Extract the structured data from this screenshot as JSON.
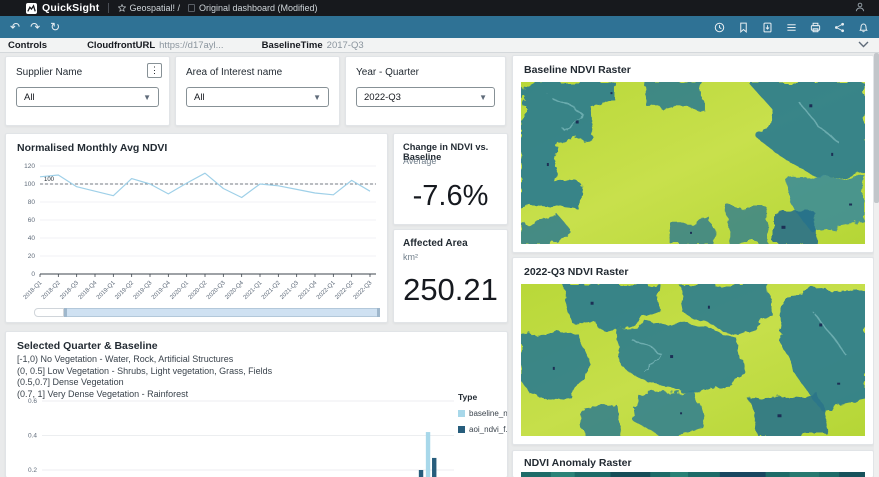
{
  "topbar": {
    "brand": "QuickSight",
    "breadcrumb": "Geospatial! /",
    "page_title": "Original dashboard (Modified)"
  },
  "toolbar": {
    "left_icons": [
      "undo",
      "redo",
      "refresh"
    ],
    "right_icons": [
      "schedule",
      "bookmark",
      "download",
      "rows",
      "print",
      "share",
      "alerts"
    ]
  },
  "controls_bar": {
    "title": "Controls",
    "params": [
      {
        "name": "CloudfrontURL",
        "value": "https://d17ayl..."
      },
      {
        "name": "BaselineTime",
        "value": "2017-Q3"
      }
    ]
  },
  "filters": [
    {
      "label": "Supplier Name",
      "value": "All"
    },
    {
      "label": "Area of Interest name",
      "value": "All"
    },
    {
      "label": "Year - Quarter",
      "value": "2022-Q3"
    }
  ],
  "kpis": [
    {
      "title": "Change in NDVI vs. Baseline",
      "subtitle": "Average",
      "value": "-7.6%"
    },
    {
      "title": "Affected Area",
      "subtitle": "km²",
      "value": "250.21"
    }
  ],
  "raster_panels": [
    {
      "title": "Baseline NDVI Raster"
    },
    {
      "title": "2022-Q3 NDVI Raster"
    },
    {
      "title": "NDVI Anomaly Raster"
    }
  ],
  "colors": {
    "topbar": "#17191d",
    "toolbar_blue": "#2f7295",
    "line": "#9fd0e8",
    "baseline_series": "#a8d8ea",
    "aoi_series": "#275d7c",
    "raster_green": "#bcd93c",
    "raster_teal": "#2e7d8d"
  },
  "chart_data": [
    {
      "type": "line",
      "title": "Normalised Monthly Avg NDVI",
      "categories": [
        "2018-Q1",
        "2018-Q2",
        "2018-Q3",
        "2018-Q4",
        "2019-Q1",
        "2019-Q2",
        "2019-Q3",
        "2019-Q4",
        "2020-Q1",
        "2020-Q2",
        "2020-Q3",
        "2020-Q4",
        "2021-Q1",
        "2021-Q2",
        "2021-Q3",
        "2021-Q4",
        "2022-Q1",
        "2022-Q2",
        "2022-Q3"
      ],
      "values": [
        108,
        110,
        97,
        92,
        87,
        106,
        100,
        89,
        101,
        112,
        95,
        85,
        100,
        98,
        94,
        90,
        88,
        104,
        92
      ],
      "ylim": [
        0,
        120
      ],
      "yticks": [
        0,
        20,
        40,
        60,
        80,
        100,
        120
      ],
      "reference_line": {
        "value": 100,
        "label": "100",
        "style": "dashed"
      },
      "grid": true,
      "line_color": "#9fd0e8"
    },
    {
      "type": "bar",
      "title": "Selected Quarter & Baseline",
      "notes": [
        "[-1,0) No Vegetation - Water, Rock, Artificial Structures",
        "(0, 0.5] Low Vegetation - Shrubs, Light vegetation, Grass, Fields",
        "(0.5,0.7] Dense Vegetation",
        "(0.7, 1] Very Dense Vegetation - Rainforest"
      ],
      "legend_title": "Type",
      "legend_position": "right",
      "series": [
        {
          "name": "baseline_n...",
          "color": "#a8d8ea"
        },
        {
          "name": "aoi_ndvi_f...",
          "color": "#275d7c"
        }
      ],
      "visible_yticks": [
        0.2,
        0.4,
        0.6
      ],
      "visible_bars": [
        {
          "series": "aoi_ndvi_f...",
          "value": 0.2,
          "x_frac": 0.92
        },
        {
          "series": "baseline_n...",
          "value": 0.42,
          "x_frac": 0.937
        },
        {
          "series": "aoi_ndvi_f...",
          "value": 0.27,
          "x_frac": 0.952
        }
      ]
    }
  ]
}
